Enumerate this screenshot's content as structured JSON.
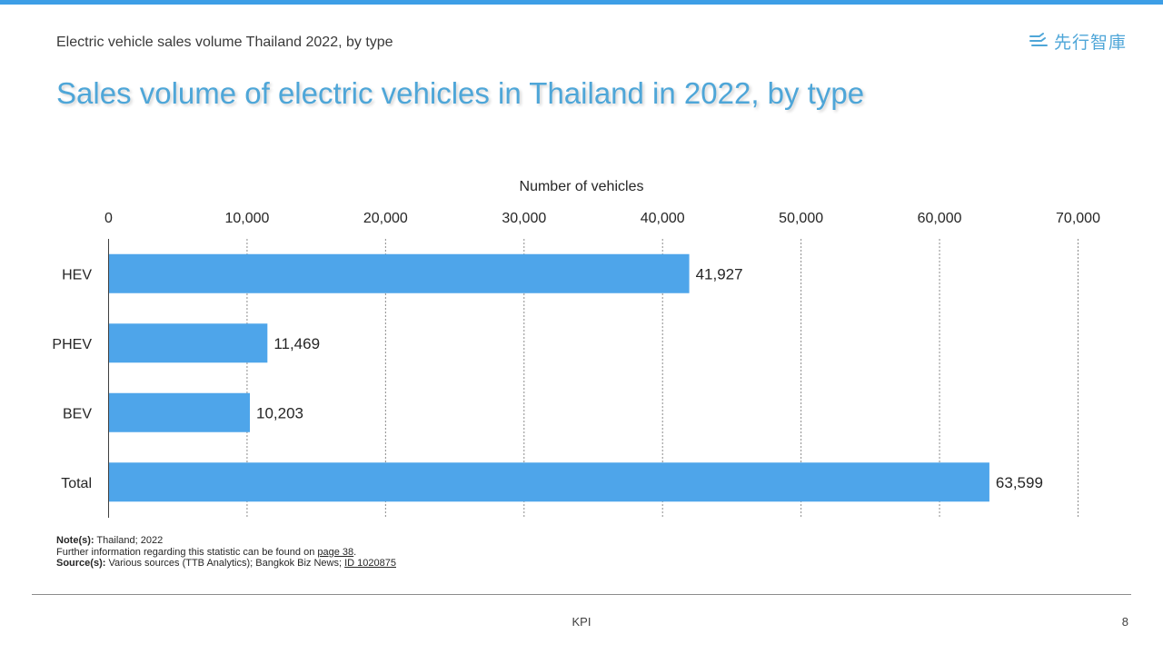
{
  "header": {
    "subtitle": "Electric vehicle sales volume Thailand 2022, by type",
    "title": "Sales volume of electric vehicles in Thailand in 2022, by type",
    "logo_text": "先行智庫"
  },
  "chart_data": {
    "type": "bar",
    "orientation": "horizontal",
    "xlabel": "Number of vehicles",
    "ylabel": "",
    "xlim": [
      0,
      70000
    ],
    "x_ticks": [
      0,
      10000,
      20000,
      30000,
      40000,
      50000,
      60000,
      70000
    ],
    "x_tick_labels": [
      "0",
      "10,000",
      "20,000",
      "30,000",
      "40,000",
      "50,000",
      "60,000",
      "70,000"
    ],
    "categories": [
      "HEV",
      "PHEV",
      "BEV",
      "Total"
    ],
    "values": [
      41927,
      11469,
      10203,
      63599
    ],
    "value_labels": [
      "41,927",
      "11,469",
      "10,203",
      "63,599"
    ],
    "bar_color": "#4ea5ea",
    "grid": "vertical-dotted",
    "axis_position": "top"
  },
  "notes": {
    "note_label": "Note(s):",
    "note_text": "Thailand; 2022",
    "further_text": "Further  information regarding this statistic can be found on",
    "page_link": "page 38",
    "period": ".",
    "source_label": "Source(s):",
    "source_text": "Various sources (TTB Analytics); Bangkok Biz News;",
    "id_link": "ID 1020875"
  },
  "footer": {
    "center": "KPI",
    "page_number": "8"
  },
  "colors": {
    "accent": "#3d9ee6",
    "title": "#4ea6d8",
    "bar": "#4ea5ea"
  }
}
